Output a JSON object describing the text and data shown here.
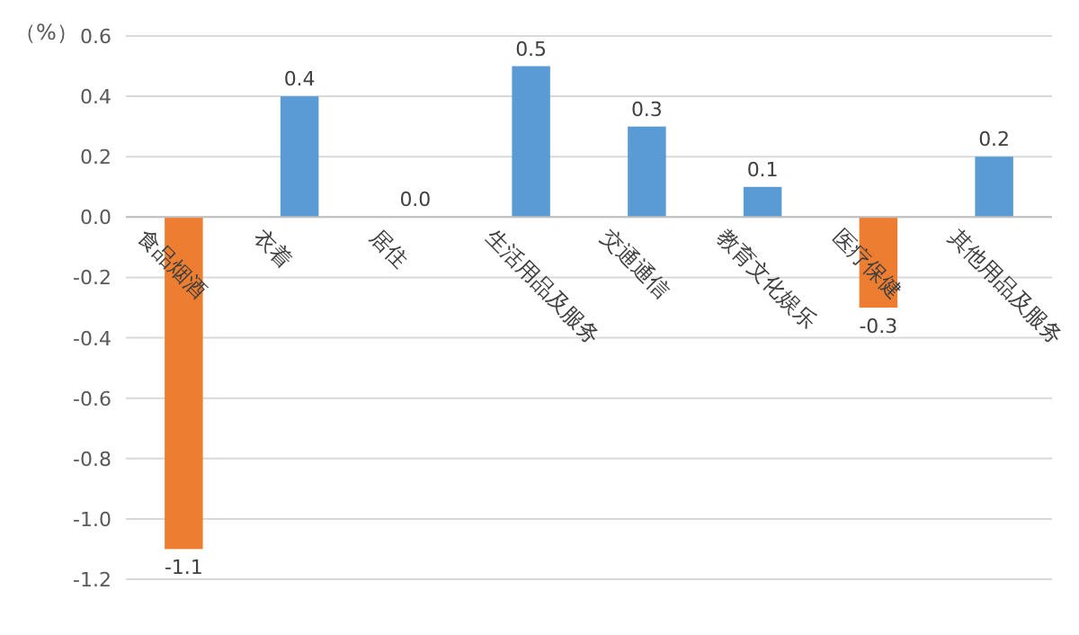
{
  "chart_data": {
    "type": "bar",
    "ylabel": "（%）",
    "categories": [
      "食品烟酒",
      "衣着",
      "居住",
      "生活用品及服务",
      "交通通信",
      "教育文化娱乐",
      "医疗保健",
      "其他用品及服务"
    ],
    "values": [
      -1.1,
      0.4,
      0.0,
      0.5,
      0.3,
      0.1,
      -0.3,
      0.2
    ],
    "colors": [
      "#ed7d31",
      "#5b9bd5",
      "#5b9bd5",
      "#5b9bd5",
      "#5b9bd5",
      "#5b9bd5",
      "#ed7d31",
      "#5b9bd5"
    ],
    "ylim": [
      -1.2,
      0.6
    ],
    "yticks": [
      {
        "value": -1.2,
        "label": "-1.2"
      },
      {
        "value": -1.0,
        "label": "-1.0"
      },
      {
        "value": -0.8,
        "label": "-0.8"
      },
      {
        "value": -0.6,
        "label": "-0.6"
      },
      {
        "value": -0.4,
        "label": "-0.4"
      },
      {
        "value": -0.2,
        "label": "-0.2"
      },
      {
        "value": 0,
        "label": "0.0"
      },
      {
        "value": 0.2,
        "label": "0.2"
      },
      {
        "value": 0.4,
        "label": "0.4"
      },
      {
        "value": 0.6,
        "label": "0.6"
      }
    ],
    "value_labels": [
      "-1.1",
      "0.4",
      "0.0",
      "0.5",
      "0.3",
      "0.1",
      "-0.3",
      "0.2"
    ],
    "grid": "y"
  }
}
